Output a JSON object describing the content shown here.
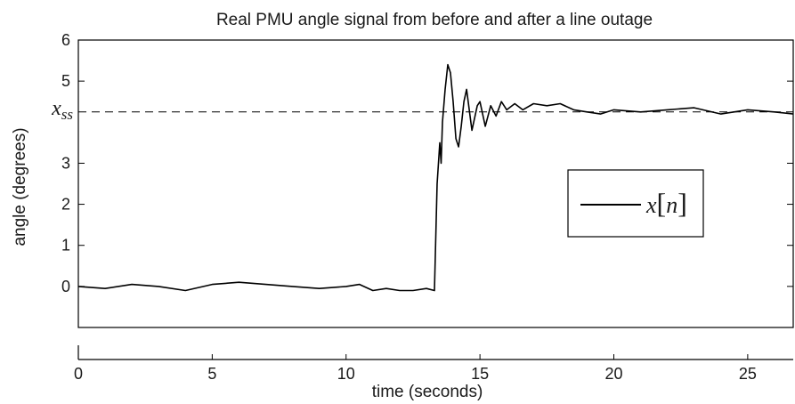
{
  "chart_data": {
    "type": "line",
    "title": "Real PMU angle signal from before and after a line outage",
    "xlabel": "time (seconds)",
    "ylabel": "angle (degrees)",
    "xlim": [
      0,
      26.7
    ],
    "ylim": [
      -1,
      6
    ],
    "x_ticks": [
      0,
      5,
      10,
      15,
      20,
      25
    ],
    "y_ticks": [
      0,
      1,
      2,
      3,
      5,
      6
    ],
    "y_tick_labels": [
      "0",
      "1",
      "2",
      "3",
      "5",
      "6"
    ],
    "grid": false,
    "legend_position": "right-center",
    "reference_line": {
      "y": 4.25,
      "label_main": "x",
      "label_sub": "ss",
      "style": "dashed"
    },
    "series": [
      {
        "name": "x[n]",
        "legend_label": {
          "var": "x",
          "open": "[",
          "index": "n",
          "close": "]"
        },
        "color": "#000000",
        "x": [
          0,
          1,
          2,
          3,
          4,
          5,
          6,
          7,
          8,
          9,
          10,
          10.5,
          11,
          11.5,
          12,
          12.5,
          13,
          13.3,
          13.4,
          13.5,
          13.55,
          13.6,
          13.7,
          13.8,
          13.9,
          14.0,
          14.1,
          14.2,
          14.3,
          14.4,
          14.5,
          14.6,
          14.7,
          14.8,
          14.9,
          15.0,
          15.2,
          15.4,
          15.6,
          15.8,
          16.0,
          16.3,
          16.6,
          17.0,
          17.5,
          18.0,
          18.5,
          19.0,
          19.5,
          20.0,
          21.0,
          22.0,
          23.0,
          24.0,
          25.0,
          26.0,
          26.7
        ],
        "y": [
          0.0,
          -0.05,
          0.05,
          0.0,
          -0.1,
          0.05,
          0.1,
          0.05,
          0.0,
          -0.05,
          0.0,
          0.05,
          -0.1,
          -0.05,
          -0.1,
          -0.1,
          -0.05,
          -0.1,
          2.5,
          3.5,
          3.0,
          4.0,
          4.8,
          5.4,
          5.2,
          4.5,
          3.6,
          3.4,
          3.9,
          4.5,
          4.8,
          4.3,
          3.8,
          4.1,
          4.4,
          4.5,
          3.9,
          4.4,
          4.15,
          4.5,
          4.3,
          4.45,
          4.3,
          4.45,
          4.4,
          4.45,
          4.3,
          4.25,
          4.2,
          4.3,
          4.25,
          4.3,
          4.35,
          4.2,
          4.3,
          4.25,
          4.2
        ]
      }
    ]
  }
}
